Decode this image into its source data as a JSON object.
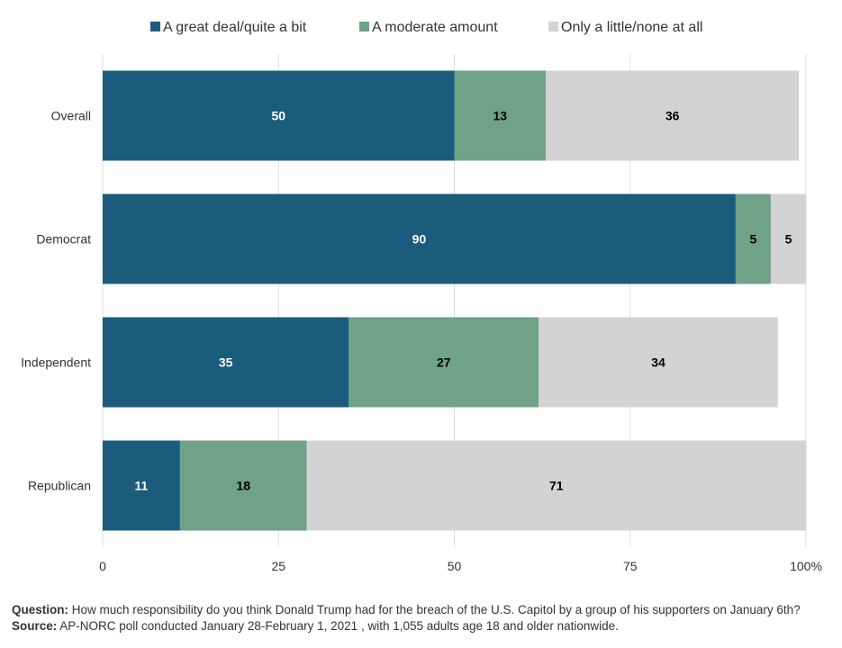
{
  "chart_data": {
    "type": "bar",
    "orientation": "horizontal",
    "stacked": true,
    "categories": [
      "Overall",
      "Democrat",
      "Independent",
      "Republican"
    ],
    "series": [
      {
        "name": "A great deal/quite a bit",
        "color": "#1b5c7c",
        "label_color": "#ffffff",
        "values": [
          50,
          90,
          35,
          11
        ]
      },
      {
        "name": "A moderate amount",
        "color": "#6fa287",
        "label_color": "#000000",
        "values": [
          13,
          5,
          27,
          18
        ]
      },
      {
        "name": "Only a little/none at all",
        "color": "#d3d3d3",
        "label_color": "#000000",
        "values": [
          36,
          5,
          34,
          71
        ]
      }
    ],
    "xlim": [
      0,
      100
    ],
    "x_ticks": [
      "0",
      "25",
      "50",
      "75",
      "100%"
    ],
    "grid": true,
    "legend_position": "top"
  },
  "footer": {
    "question_label": "Question:",
    "question_text": " How much responsibility do you think Donald Trump had for the breach of the U.S. Capitol by a group of his supporters on January 6th?",
    "source_label": "Source:",
    "source_text": " AP-NORC poll conducted January 28-February 1, 2021 , with 1,055 adults age 18 and older nationwide."
  }
}
